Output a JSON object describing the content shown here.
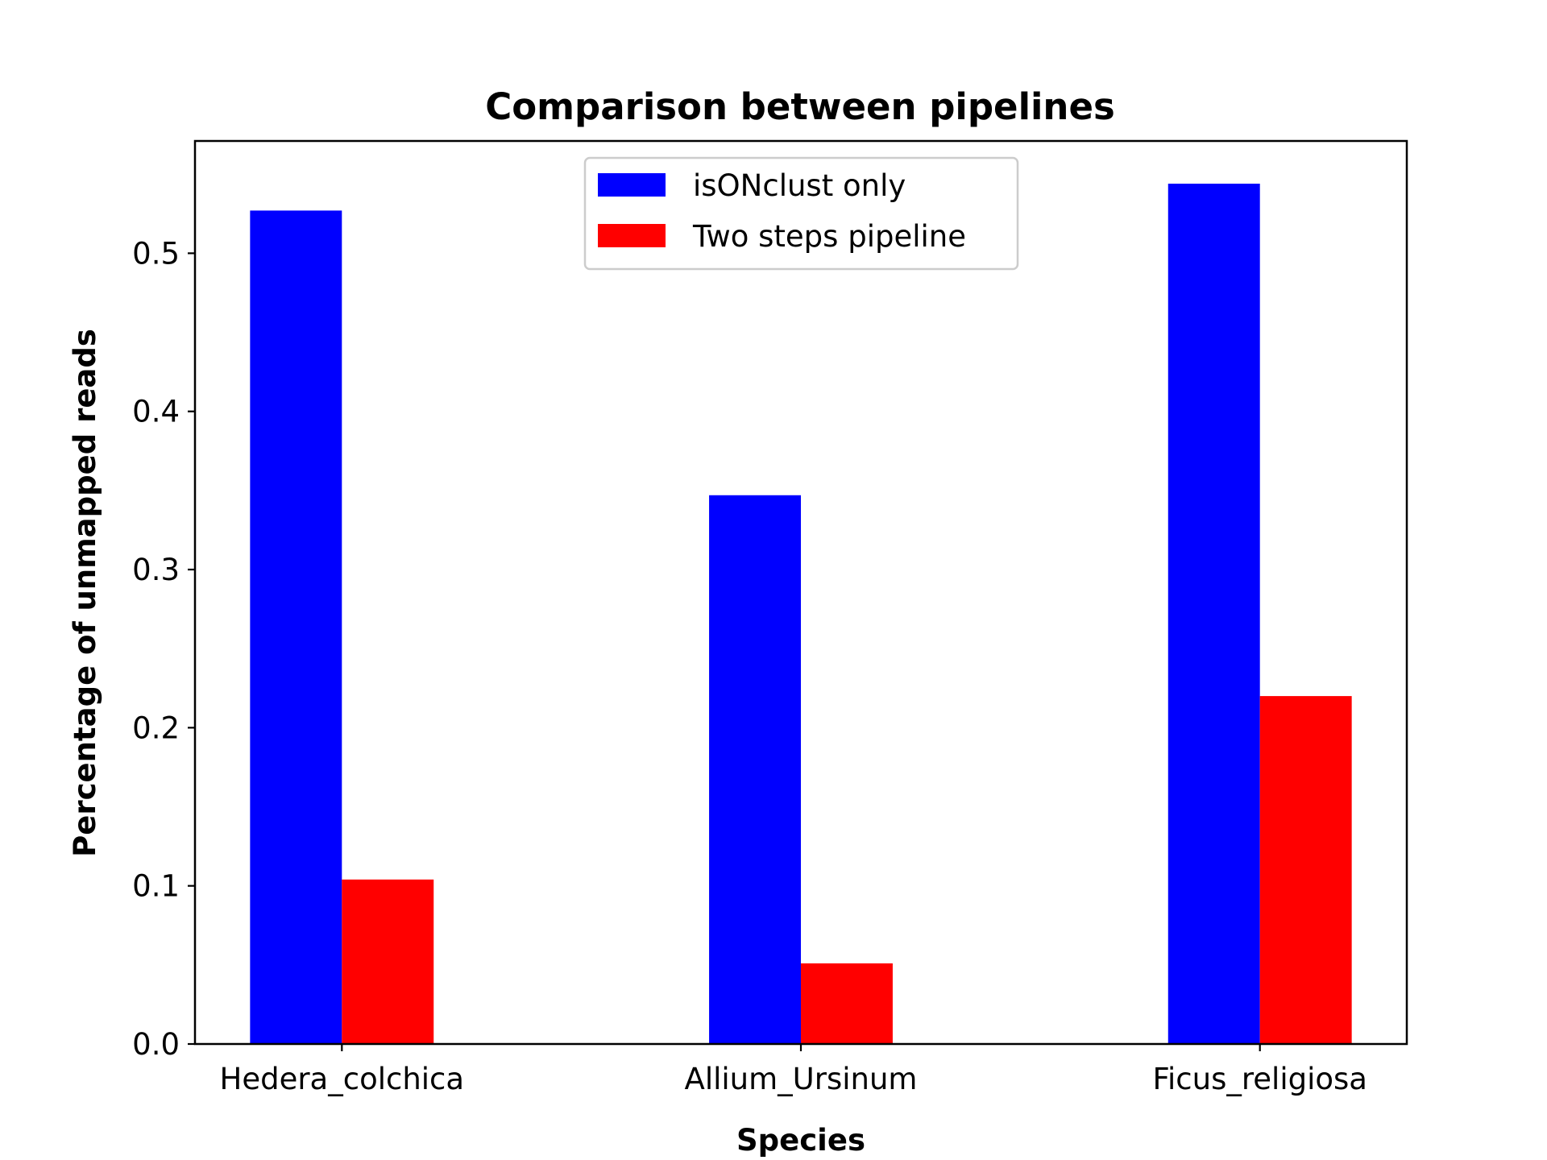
{
  "chart_data": {
    "type": "bar",
    "title": "Comparison between pipelines",
    "xlabel": "Species",
    "ylabel": "Percentage of unmapped reads",
    "categories": [
      "Hedera_colchica",
      "Allium_Ursinum",
      "Ficus_religiosa"
    ],
    "series": [
      {
        "name": "isONclust only",
        "color": "#0000ff",
        "values": [
          0.527,
          0.347,
          0.544
        ]
      },
      {
        "name": "Two steps pipeline",
        "color": "#ff0000",
        "values": [
          0.104,
          0.051,
          0.22
        ]
      }
    ],
    "ylim": [
      0,
      0.571
    ],
    "yticks": [
      0.0,
      0.1,
      0.2,
      0.3,
      0.4,
      0.5
    ],
    "ytick_labels": [
      "0.0",
      "0.1",
      "0.2",
      "0.3",
      "0.4",
      "0.5"
    ],
    "grid": false,
    "legend_position": "top-center"
  }
}
